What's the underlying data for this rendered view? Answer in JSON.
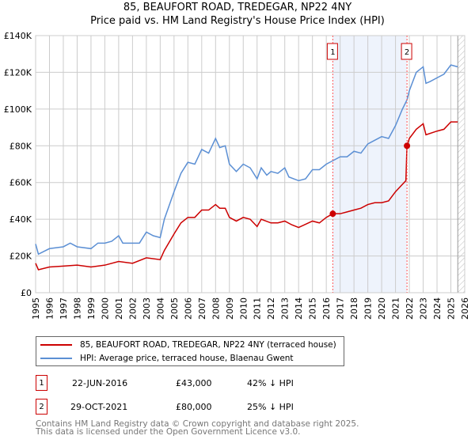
{
  "chart_data": {
    "type": "line",
    "title": "85, BEAUFORT ROAD, TREDEGAR, NP22 4NY",
    "subtitle": "Price paid vs. HM Land Registry's House Price Index (HPI)",
    "xlim": [
      1995,
      2026
    ],
    "ylim": [
      0,
      140000
    ],
    "yticks": [
      {
        "v": 0,
        "label": "£0"
      },
      {
        "v": 20000,
        "label": "£20K"
      },
      {
        "v": 40000,
        "label": "£40K"
      },
      {
        "v": 60000,
        "label": "£60K"
      },
      {
        "v": 80000,
        "label": "£80K"
      },
      {
        "v": 100000,
        "label": "£100K"
      },
      {
        "v": 120000,
        "label": "£120K"
      },
      {
        "v": 140000,
        "label": "£140K"
      }
    ],
    "xticks": [
      "1995",
      "1996",
      "1997",
      "1998",
      "1999",
      "2000",
      "2001",
      "2002",
      "2003",
      "2004",
      "2005",
      "2006",
      "2007",
      "2008",
      "2009",
      "2010",
      "2011",
      "2012",
      "2013",
      "2014",
      "2015",
      "2016",
      "2017",
      "2018",
      "2019",
      "2020",
      "2021",
      "2022",
      "2023",
      "2024",
      "2025",
      "2026"
    ],
    "grid": true,
    "shaded_range": [
      2016.47,
      2021.83
    ],
    "forecast_hatch_from": 2025.5,
    "series": [
      {
        "name": "HPI: Average price, terraced house, Blaenau Gwent",
        "color": "#5b8fd4",
        "x": [
          1995,
          1995.2,
          1996,
          1997,
          1997.5,
          1998,
          1999,
          1999.5,
          2000,
          2000.5,
          2001,
          2001.3,
          2002,
          2002.5,
          2003,
          2003.5,
          2004,
          2004.3,
          2005,
          2005.5,
          2006,
          2006.5,
          2007,
          2007.5,
          2008,
          2008.3,
          2008.7,
          2009,
          2009.5,
          2010,
          2010.5,
          2011,
          2011.3,
          2011.7,
          2012,
          2012.5,
          2013,
          2013.3,
          2014,
          2014.5,
          2015,
          2015.5,
          2016,
          2016.5,
          2017,
          2017.5,
          2018,
          2018.5,
          2019,
          2019.5,
          2020,
          2020.5,
          2021,
          2021.5,
          2021.83,
          2022,
          2022.5,
          2023,
          2023.2,
          2023.5,
          2024,
          2024.5,
          2025,
          2025.5
        ],
        "y": [
          26500,
          21000,
          24000,
          25000,
          27000,
          25000,
          24000,
          27000,
          27000,
          28000,
          31000,
          27000,
          27000,
          27000,
          33000,
          31000,
          30000,
          40000,
          55000,
          65000,
          71000,
          70000,
          78000,
          76000,
          84000,
          79000,
          80000,
          70000,
          66000,
          70000,
          68000,
          62000,
          68000,
          64000,
          66000,
          65000,
          68000,
          63000,
          61000,
          62000,
          67000,
          67000,
          70000,
          72000,
          74000,
          74000,
          77000,
          76000,
          81000,
          83000,
          85000,
          84000,
          91000,
          100000,
          105000,
          110000,
          120000,
          123000,
          114000,
          115000,
          117000,
          119000,
          124000,
          123000
        ]
      },
      {
        "name": "85, BEAUFORT ROAD, TREDEGAR, NP22 4NY (terraced house)",
        "color": "#cc0000",
        "x": [
          1995,
          1995.2,
          1996,
          1997,
          1998,
          1999,
          2000,
          2001,
          2002,
          2003,
          2004,
          2004.3,
          2005,
          2005.5,
          2006,
          2006.5,
          2007,
          2007.5,
          2008,
          2008.3,
          2008.7,
          2009,
          2009.5,
          2010,
          2010.5,
          2011,
          2011.3,
          2012,
          2012.5,
          2013,
          2013.5,
          2014,
          2015,
          2015.5,
          2016,
          2016.47,
          2017,
          2017.5,
          2018,
          2018.5,
          2019,
          2019.5,
          2020,
          2020.5,
          2021,
          2021.5,
          2021.75,
          2021.83,
          2022,
          2022.5,
          2023,
          2023.2,
          2024,
          2024.5,
          2025,
          2025.5
        ],
        "y": [
          16000,
          12500,
          14000,
          14500,
          15000,
          14000,
          15000,
          17000,
          16000,
          19000,
          18000,
          23000,
          32000,
          38000,
          41000,
          41000,
          45000,
          45000,
          48000,
          46000,
          46000,
          41000,
          39000,
          41000,
          40000,
          36000,
          40000,
          38000,
          38000,
          39000,
          37000,
          35500,
          39000,
          38000,
          41000,
          43000,
          43000,
          44000,
          45000,
          46000,
          48000,
          49000,
          49000,
          50000,
          55000,
          59000,
          61000,
          80000,
          84000,
          89000,
          92000,
          86000,
          88000,
          89000,
          93000,
          93000
        ]
      }
    ],
    "sales": [
      {
        "id": "1",
        "x": 2016.47,
        "price": 43000
      },
      {
        "id": "2",
        "x": 2021.83,
        "price": 80000
      }
    ]
  },
  "legend": {
    "property": "85, BEAUFORT ROAD, TREDEGAR, NP22 4NY (terraced house)",
    "hpi": "HPI: Average price, terraced house, Blaenau Gwent"
  },
  "transactions": [
    {
      "id": "1",
      "date": "22-JUN-2016",
      "price": "£43,000",
      "delta": "42% ↓ HPI"
    },
    {
      "id": "2",
      "date": "29-OCT-2021",
      "price": "£80,000",
      "delta": "25% ↓ HPI"
    }
  ],
  "footer": {
    "line1": "Contains HM Land Registry data © Crown copyright and database right 2025.",
    "line2": "This data is licensed under the Open Government Licence v3.0."
  }
}
